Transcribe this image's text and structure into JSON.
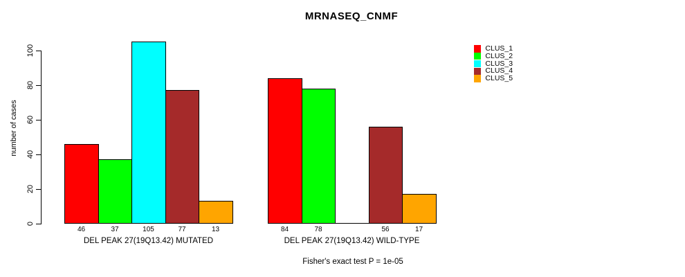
{
  "title": "MRNASEQ_CNMF",
  "footnote": "Fisher's exact test P = 1e-05",
  "y_axis": {
    "label": "number of cases"
  },
  "chart_data": {
    "type": "bar",
    "title": "MRNASEQ_CNMF",
    "ylabel": "number of cases",
    "xlabel": "",
    "categories": [
      "DEL PEAK 27(19Q13.42) MUTATED",
      "DEL PEAK 27(19Q13.42) WILD-TYPE"
    ],
    "series": [
      {
        "name": "CLUS_1",
        "color": "#FF0000",
        "values": [
          46,
          84
        ]
      },
      {
        "name": "CLUS_2",
        "color": "#00FF00",
        "values": [
          37,
          78
        ]
      },
      {
        "name": "CLUS_3",
        "color": "#00FFFF",
        "values": [
          105,
          0
        ]
      },
      {
        "name": "CLUS_4",
        "color": "#A52A2A",
        "values": [
          77,
          56
        ]
      },
      {
        "name": "CLUS_5",
        "color": "#FFA500",
        "values": [
          13,
          17
        ]
      }
    ],
    "yticks": [
      0,
      20,
      40,
      60,
      80,
      100
    ],
    "ylim": [
      0,
      105
    ],
    "grid": false,
    "legend_position": "right",
    "bar_value_labels": true,
    "annotation": "Fisher's exact test P = 1e-05"
  }
}
